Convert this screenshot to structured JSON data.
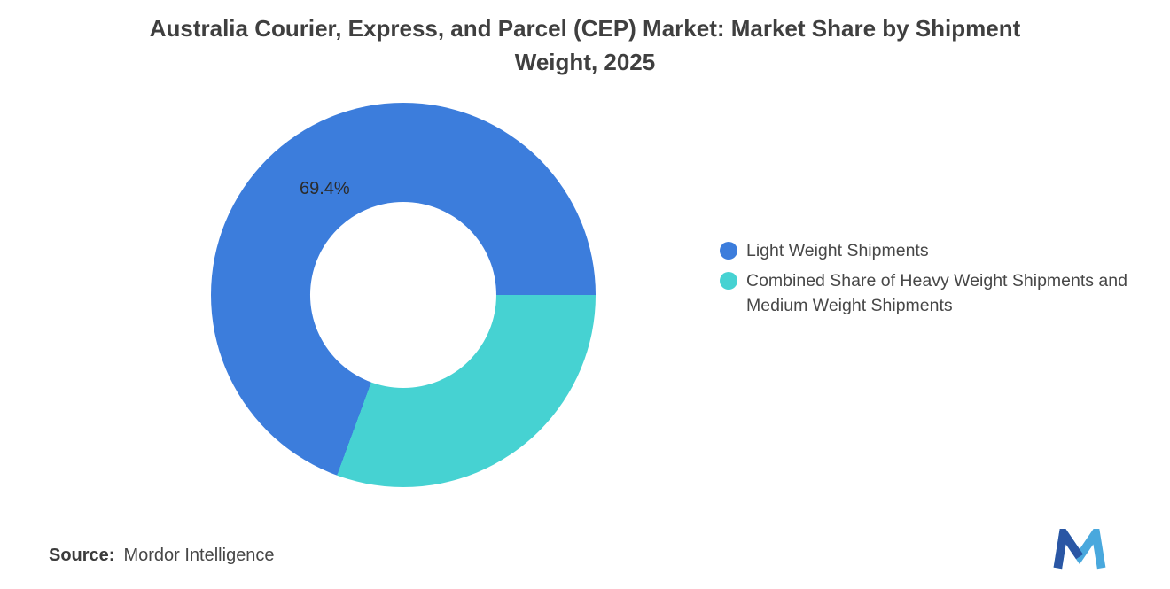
{
  "title": "Australia Courier, Express, and Parcel (CEP) Market: Market Share by Shipment Weight, 2025",
  "chart_data": {
    "type": "pie",
    "subtype": "donut",
    "title": "Australia Courier, Express, and Parcel (CEP) Market: Market Share by Shipment Weight, 2025",
    "series": [
      {
        "name": "Light Weight Shipments",
        "value": 69.4,
        "display_label": "69.4%",
        "color": "#3c7ddc"
      },
      {
        "name": "Combined Share of Heavy Weight Shipments and Medium Weight Shipments",
        "value": 30.6,
        "display_label": "",
        "color": "#46d2d2"
      }
    ],
    "rotation_deg": 200.16,
    "inner_radius_pct": 48.4,
    "legend_position": "right",
    "grid": false
  },
  "footer": {
    "source_label": "Source:",
    "source_value": "Mordor Intelligence",
    "logo_name": "mordor-intelligence-logo",
    "logo_color_dark": "#2a56a4",
    "logo_color_light": "#49a8dd"
  }
}
